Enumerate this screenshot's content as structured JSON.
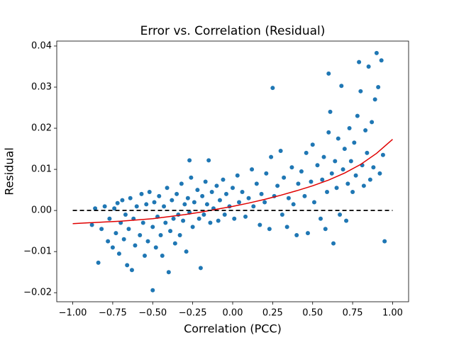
{
  "chart_data": {
    "type": "scatter",
    "title": "Error vs. Correlation (Residual)",
    "xlabel": "Correlation (PCC)",
    "ylabel": "Residual",
    "xlim": [
      -1.1,
      1.1
    ],
    "ylim": [
      -0.0222,
      0.0412
    ],
    "xticks": [
      {
        "value": -1,
        "label": "−1.00"
      },
      {
        "value": -0.75,
        "label": "−0.75"
      },
      {
        "value": -0.5,
        "label": "−0.50"
      },
      {
        "value": -0.25,
        "label": "−0.25"
      },
      {
        "value": 0,
        "label": "0.00"
      },
      {
        "value": 0.25,
        "label": "0.25"
      },
      {
        "value": 0.5,
        "label": "0.50"
      },
      {
        "value": 0.75,
        "label": "0.75"
      },
      {
        "value": 1,
        "label": "1.00"
      }
    ],
    "yticks": [
      {
        "value": -0.02,
        "label": "−0.02"
      },
      {
        "value": -0.01,
        "label": "−0.01"
      },
      {
        "value": 0,
        "label": "0.00"
      },
      {
        "value": 0.01,
        "label": "0.01"
      },
      {
        "value": 0.02,
        "label": "0.02"
      },
      {
        "value": 0.03,
        "label": "0.03"
      },
      {
        "value": 0.04,
        "label": "0.04"
      }
    ],
    "series": [
      {
        "type": "scatter",
        "color": "#1f77b4",
        "x": [
          -0.88,
          -0.86,
          -0.84,
          -0.82,
          -0.8,
          -0.78,
          -0.77,
          -0.75,
          -0.74,
          -0.73,
          -0.72,
          -0.71,
          -0.7,
          -0.69,
          -0.68,
          -0.67,
          -0.66,
          -0.65,
          -0.64,
          -0.63,
          -0.62,
          -0.61,
          -0.6,
          -0.58,
          -0.57,
          -0.56,
          -0.55,
          -0.54,
          -0.53,
          -0.52,
          -0.5,
          -0.5,
          -0.49,
          -0.48,
          -0.47,
          -0.46,
          -0.45,
          -0.44,
          -0.43,
          -0.42,
          -0.41,
          -0.4,
          -0.39,
          -0.38,
          -0.37,
          -0.36,
          -0.35,
          -0.34,
          -0.33,
          -0.32,
          -0.31,
          -0.3,
          -0.29,
          -0.28,
          -0.27,
          -0.27,
          -0.26,
          -0.25,
          -0.24,
          -0.22,
          -0.21,
          -0.2,
          -0.19,
          -0.18,
          -0.17,
          -0.16,
          -0.15,
          -0.14,
          -0.13,
          -0.12,
          -0.1,
          -0.09,
          -0.08,
          -0.06,
          -0.05,
          -0.04,
          -0.02,
          0.0,
          0.01,
          0.03,
          0.04,
          0.06,
          0.08,
          0.1,
          0.12,
          0.13,
          0.15,
          0.17,
          0.18,
          0.2,
          0.21,
          0.23,
          0.24,
          0.25,
          0.26,
          0.28,
          0.3,
          0.31,
          0.32,
          0.34,
          0.35,
          0.37,
          0.38,
          0.4,
          0.41,
          0.43,
          0.45,
          0.46,
          0.47,
          0.49,
          0.5,
          0.51,
          0.53,
          0.55,
          0.56,
          0.57,
          0.58,
          0.59,
          0.6,
          0.6,
          0.61,
          0.62,
          0.63,
          0.64,
          0.65,
          0.66,
          0.67,
          0.68,
          0.69,
          0.7,
          0.71,
          0.72,
          0.73,
          0.74,
          0.75,
          0.76,
          0.77,
          0.78,
          0.79,
          0.8,
          0.81,
          0.82,
          0.83,
          0.84,
          0.85,
          0.86,
          0.87,
          0.88,
          0.89,
          0.9,
          0.91,
          0.92,
          0.93,
          0.94,
          0.95
        ],
        "values": [
          -0.0035,
          0.0005,
          -0.0127,
          -0.0045,
          0.001,
          -0.0075,
          -0.002,
          -0.009,
          0.0005,
          -0.0055,
          0.0018,
          -0.0105,
          -0.003,
          0.0025,
          -0.007,
          -0.001,
          -0.0133,
          -0.0045,
          0.003,
          -0.0145,
          -0.002,
          -0.0085,
          0.001,
          -0.006,
          0.004,
          -0.003,
          -0.011,
          0.0015,
          -0.0075,
          0.0045,
          -0.0194,
          -0.004,
          0.002,
          -0.009,
          -0.0015,
          0.0035,
          -0.006,
          -0.011,
          0.001,
          -0.003,
          0.0055,
          -0.015,
          -0.005,
          0.0025,
          -0.002,
          -0.008,
          0.004,
          -0.001,
          -0.006,
          0.0065,
          -0.0025,
          0.0015,
          -0.01,
          0.003,
          0.0122,
          -0.0005,
          0.008,
          -0.004,
          0.002,
          0.005,
          -0.002,
          -0.014,
          0.0035,
          -0.001,
          0.007,
          0.0015,
          0.0122,
          -0.003,
          0.0045,
          0.0005,
          0.006,
          -0.0025,
          0.0025,
          0.0075,
          -0.001,
          0.004,
          0.001,
          0.0055,
          -0.002,
          0.0085,
          0.002,
          0.0045,
          -0.0015,
          0.003,
          0.01,
          0.001,
          0.0065,
          -0.0035,
          0.004,
          0.002,
          0.009,
          -0.0045,
          0.013,
          0.0298,
          0.0035,
          0.006,
          0.0145,
          -0.001,
          0.008,
          -0.004,
          0.003,
          0.0105,
          0.0015,
          -0.006,
          0.0065,
          0.0095,
          0.0035,
          0.014,
          -0.0055,
          0.007,
          0.016,
          0.002,
          0.011,
          -0.002,
          0.0075,
          0.013,
          -0.0045,
          0.0045,
          0.0333,
          0.019,
          0.024,
          0.009,
          -0.008,
          0.012,
          0.0055,
          0.0175,
          -0.001,
          0.0303,
          0.01,
          0.015,
          -0.0025,
          0.0065,
          0.02,
          0.012,
          0.0045,
          0.0165,
          0.0085,
          0.023,
          0.0361,
          0.029,
          0.011,
          0.006,
          0.0195,
          0.014,
          0.035,
          0.0075,
          0.0215,
          0.0105,
          0.027,
          0.0383,
          0.03,
          0.009,
          0.0365,
          0.0135,
          -0.0075
        ]
      },
      {
        "type": "line",
        "color": "#e00000",
        "x": [
          -1,
          -0.9,
          -0.8,
          -0.7,
          -0.6,
          -0.5,
          -0.4,
          -0.3,
          -0.2,
          -0.1,
          0,
          0.1,
          0.2,
          0.3,
          0.4,
          0.5,
          0.6,
          0.7,
          0.8,
          0.9,
          1
        ],
        "values": [
          -0.0032,
          -0.003,
          -0.0028,
          -0.0026,
          -0.0023,
          -0.002,
          -0.0015,
          -0.001,
          -0.0004,
          0.0003,
          0.001,
          0.0018,
          0.0027,
          0.0037,
          0.0048,
          0.006,
          0.0074,
          0.0091,
          0.0112,
          0.0139,
          0.0173
        ]
      },
      {
        "type": "line",
        "color": "#000000",
        "dashed": true,
        "x": [
          -1,
          1
        ],
        "values": [
          0,
          0
        ]
      }
    ]
  }
}
